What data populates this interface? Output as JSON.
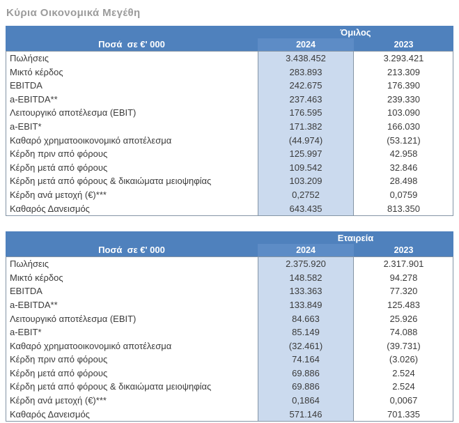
{
  "title": "Κύρια Οικονομικά Μεγέθη",
  "colors": {
    "header_blue": "#4f81bd",
    "header_blue_highlight": "#5d8cc6",
    "column_highlight": "#cbdaee",
    "border": "#8494a5",
    "title_gray": "#9b9b9b"
  },
  "tables": [
    {
      "group_header": "Όμιλος",
      "amounts_label": "Ποσά  σε €' 000",
      "year_cols": [
        "2024",
        "2023"
      ],
      "rows": [
        {
          "label": "Πωλήσεις",
          "y2024": "3.438.452",
          "y2023": "3.293.421"
        },
        {
          "label": "Μικτό κέρδος",
          "y2024": "283.893",
          "y2023": "213.309"
        },
        {
          "label": "EBITDA",
          "y2024": "242.675",
          "y2023": "176.390"
        },
        {
          "label": "a-EBITDA**",
          "y2024": "237.463",
          "y2023": "239.330"
        },
        {
          "label": "Λειτουργικό αποτέλεσμα (EBIT)",
          "y2024": "176.595",
          "y2023": "103.090"
        },
        {
          "label": "a-EBIT*",
          "y2024": "171.382",
          "y2023": "166.030"
        },
        {
          "label": "Καθαρό χρηματοοικονομικό αποτέλεσμα",
          "y2024": "(44.974)",
          "y2023": "(53.121)"
        },
        {
          "label": "Κέρδη πριν από φόρους",
          "y2024": "125.997",
          "y2023": "42.958"
        },
        {
          "label": "Κέρδη μετά από φόρους",
          "y2024": "109.542",
          "y2023": "32.846"
        },
        {
          "label": "Κέρδη μετά από φόρους & δικαιώματα μειοψηφίας",
          "y2024": "103.209",
          "y2023": "28.498"
        },
        {
          "label": "Κέρδη ανά μετοχή (€)***",
          "y2024": "0,2752",
          "y2023": "0,0759"
        },
        {
          "label": "Καθαρός Δανεισμός",
          "y2024": "643.435",
          "y2023": "813.350"
        }
      ]
    },
    {
      "group_header": "Εταιρεία",
      "amounts_label": "Ποσά  σε €' 000",
      "year_cols": [
        "2024",
        "2023"
      ],
      "rows": [
        {
          "label": "Πωλήσεις",
          "y2024": "2.375.920",
          "y2023": "2.317.901"
        },
        {
          "label": "Μικτό κέρδος",
          "y2024": "148.582",
          "y2023": "94.278"
        },
        {
          "label": "EBITDA",
          "y2024": "133.363",
          "y2023": "77.320"
        },
        {
          "label": "a-EBITDA**",
          "y2024": "133.849",
          "y2023": "125.483"
        },
        {
          "label": "Λειτουργικό αποτέλεσμα (EBIT)",
          "y2024": "84.663",
          "y2023": "25.926"
        },
        {
          "label": "a-EBIT*",
          "y2024": "85.149",
          "y2023": "74.088"
        },
        {
          "label": "Καθαρό χρηματοοικονομικό αποτέλεσμα",
          "y2024": "(32.461)",
          "y2023": "(39.731)"
        },
        {
          "label": "Κέρδη πριν από φόρους",
          "y2024": "74.164",
          "y2023": "(3.026)"
        },
        {
          "label": "Κέρδη μετά από φόρους",
          "y2024": "69.886",
          "y2023": "2.524"
        },
        {
          "label": "Κέρδη μετά από φόρους & δικαιώματα μειοψηφίας",
          "y2024": "69.886",
          "y2023": "2.524"
        },
        {
          "label": "Κέρδη ανά μετοχή (€)***",
          "y2024": "0,1864",
          "y2023": "0,0067"
        },
        {
          "label": "Καθαρός Δανεισμός",
          "y2024": "571.146",
          "y2023": "701.335"
        }
      ]
    }
  ]
}
